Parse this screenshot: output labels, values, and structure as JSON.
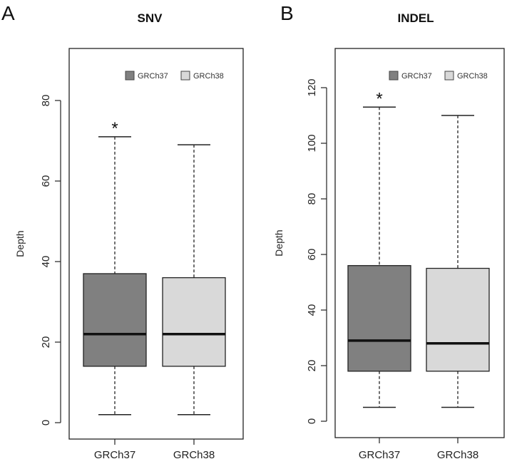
{
  "chart_data": [
    {
      "type": "box",
      "panel_label": "A",
      "title": "SNV",
      "ylabel": "Depth",
      "ylim": [
        0,
        80
      ],
      "yticks": [
        0,
        20,
        40,
        60,
        80
      ],
      "categories": [
        "GRCh37",
        "GRCh38"
      ],
      "legend": {
        "placement": "top-right",
        "entries": [
          "GRCh37",
          "GRCh38"
        ]
      },
      "series": [
        {
          "name": "GRCh37",
          "color": "#808080",
          "whisker_low": 2,
          "q1": 14,
          "median": 22,
          "q3": 37,
          "whisker_high": 71,
          "annotation": "*"
        },
        {
          "name": "GRCh38",
          "color": "#d9d9d9",
          "whisker_low": 2,
          "q1": 14,
          "median": 22,
          "q3": 36,
          "whisker_high": 69,
          "annotation": ""
        }
      ]
    },
    {
      "type": "box",
      "panel_label": "B",
      "title": "INDEL",
      "ylabel": "Depth",
      "ylim": [
        0,
        120
      ],
      "yticks": [
        0,
        20,
        40,
        60,
        80,
        100,
        120
      ],
      "categories": [
        "GRCh37",
        "GRCh38"
      ],
      "legend": {
        "placement": "top-right",
        "entries": [
          "GRCh37",
          "GRCh38"
        ]
      },
      "series": [
        {
          "name": "GRCh37",
          "color": "#808080",
          "whisker_low": 5,
          "q1": 18,
          "median": 29,
          "q3": 56,
          "whisker_high": 113,
          "annotation": "*"
        },
        {
          "name": "GRCh38",
          "color": "#d9d9d9",
          "whisker_low": 5,
          "q1": 18,
          "median": 28,
          "q3": 55,
          "whisker_high": 110,
          "annotation": ""
        }
      ]
    }
  ]
}
